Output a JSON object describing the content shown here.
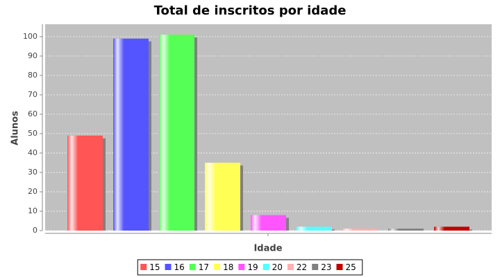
{
  "chart_data": {
    "type": "bar",
    "title": "Total de inscritos por idade",
    "x_label": "Idade",
    "y_label": "Alunos",
    "categories": [
      null
    ],
    "series": [
      {
        "name": "15",
        "color": "#ff5555",
        "values": [
          49
        ]
      },
      {
        "name": "16",
        "color": "#5555ff",
        "values": [
          99
        ]
      },
      {
        "name": "17",
        "color": "#55ff55",
        "values": [
          101
        ]
      },
      {
        "name": "18",
        "color": "#ffff55",
        "values": [
          35
        ]
      },
      {
        "name": "19",
        "color": "#ff55ff",
        "values": [
          8
        ]
      },
      {
        "name": "20",
        "color": "#55ffff",
        "values": [
          2
        ]
      },
      {
        "name": "22",
        "color": "#ffafaf",
        "values": [
          1
        ]
      },
      {
        "name": "23",
        "color": "#808080",
        "values": [
          1
        ]
      },
      {
        "name": "25",
        "color": "#c00000",
        "values": [
          2
        ]
      }
    ],
    "ylim": [
      0,
      106.4
    ],
    "yticks": [
      0,
      10,
      20,
      30,
      40,
      50,
      60,
      70,
      80,
      90,
      100
    ],
    "grid": true,
    "plot_background": "#c0c0c0",
    "legend": "bottom"
  }
}
